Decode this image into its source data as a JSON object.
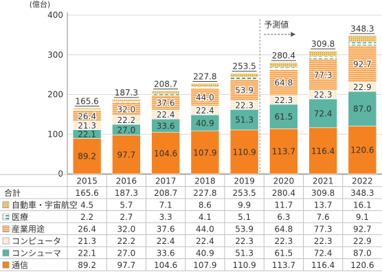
{
  "chart_data": {
    "type": "bar",
    "stacked": true,
    "unit": "(億台)",
    "categories": [
      "2015",
      "2016",
      "2017",
      "2018",
      "2019",
      "2020",
      "2021",
      "2022"
    ],
    "ylim": [
      0,
      400
    ],
    "yticks": [
      0,
      100,
      200,
      300,
      400
    ],
    "series": [
      {
        "name": "通信",
        "values": [
          89.2,
          97.7,
          104.6,
          107.9,
          110.9,
          113.7,
          116.4,
          120.6
        ],
        "color": "#f58220",
        "pattern": "solid"
      },
      {
        "name": "コンシューマ",
        "values": [
          22.1,
          27.0,
          33.6,
          40.9,
          51.3,
          61.5,
          72.4,
          87.0
        ],
        "color": "#5bb5a2",
        "pattern": "solid"
      },
      {
        "name": "コンピュータ",
        "values": [
          21.3,
          22.2,
          22.4,
          22.4,
          22.3,
          22.3,
          22.3,
          22.9
        ],
        "color": "#f8d7a3",
        "pattern": "lines"
      },
      {
        "name": "産業用途",
        "values": [
          26.4,
          32.0,
          37.6,
          44.0,
          53.9,
          64.8,
          77.3,
          92.7
        ],
        "color": "#f5a04a",
        "pattern": "lines"
      },
      {
        "name": "医療",
        "values": [
          2.2,
          2.7,
          3.3,
          4.1,
          5.1,
          6.3,
          7.6,
          9.1
        ],
        "color": "#4fa98e",
        "pattern": "dash"
      },
      {
        "name": "自動車・宇宙航空",
        "values": [
          4.5,
          5.7,
          7.1,
          8.6,
          9.9,
          11.7,
          13.7,
          16.1
        ],
        "color": "#e0a63b",
        "pattern": "dots"
      }
    ],
    "totals_label": "合計",
    "totals": [
      165.6,
      187.3,
      208.7,
      227.8,
      253.5,
      280.4,
      309.8,
      348.3
    ],
    "forecast_label": "予測値",
    "forecast_start_index": 5,
    "table_series_order": [
      "自動車・宇宙航空",
      "医療",
      "産業用途",
      "コンピュータ",
      "コンシューマ",
      "通信"
    ]
  }
}
